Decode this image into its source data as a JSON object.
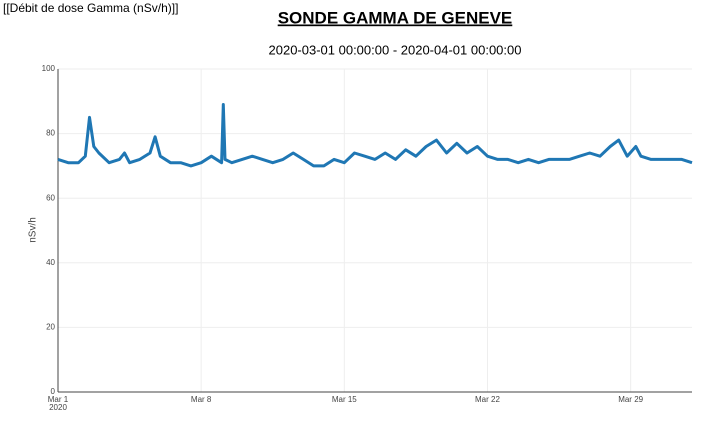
{
  "header": {
    "label": "[[Débit de dose Gamma (nSv/h)]]"
  },
  "chart_data": {
    "type": "line",
    "title": "SONDE GAMMA DE GENEVE",
    "subtitle": "2020-03-01 00:00:00 - 2020-04-01 00:00:00",
    "ylabel": "nSv/h",
    "x_year_label": "2020",
    "xlim": [
      "2020-03-01 00:00",
      "2020-04-01 00:00"
    ],
    "xticks": [
      {
        "value": "2020-03-01 00:00",
        "label": "Mar 1"
      },
      {
        "value": "2020-03-08 00:00",
        "label": "Mar 8"
      },
      {
        "value": "2020-03-15 00:00",
        "label": "Mar 15"
      },
      {
        "value": "2020-03-22 00:00",
        "label": "Mar 22"
      },
      {
        "value": "2020-03-29 00:00",
        "label": "Mar 29"
      }
    ],
    "ylim": [
      0,
      100
    ],
    "yticks": [
      0,
      20,
      40,
      60,
      80,
      100
    ],
    "grid": true,
    "series": [
      {
        "name": "nSv/h",
        "color": "#1f77b4",
        "x": [
          "2020-03-01 00:00",
          "2020-03-01 12:00",
          "2020-03-02 00:00",
          "2020-03-02 08:00",
          "2020-03-02 13:00",
          "2020-03-02 18:00",
          "2020-03-03 00:00",
          "2020-03-03 12:00",
          "2020-03-04 00:00",
          "2020-03-04 06:00",
          "2020-03-04 12:00",
          "2020-03-05 00:00",
          "2020-03-05 12:00",
          "2020-03-05 18:00",
          "2020-03-06 00:00",
          "2020-03-06 12:00",
          "2020-03-07 00:00",
          "2020-03-07 12:00",
          "2020-03-08 00:00",
          "2020-03-08 12:00",
          "2020-03-09 00:00",
          "2020-03-09 02:00",
          "2020-03-09 04:00",
          "2020-03-09 12:00",
          "2020-03-10 00:00",
          "2020-03-10 12:00",
          "2020-03-11 00:00",
          "2020-03-11 12:00",
          "2020-03-12 00:00",
          "2020-03-12 12:00",
          "2020-03-13 00:00",
          "2020-03-13 12:00",
          "2020-03-14 00:00",
          "2020-03-14 12:00",
          "2020-03-15 00:00",
          "2020-03-15 12:00",
          "2020-03-16 00:00",
          "2020-03-16 12:00",
          "2020-03-17 00:00",
          "2020-03-17 12:00",
          "2020-03-18 00:00",
          "2020-03-18 12:00",
          "2020-03-19 00:00",
          "2020-03-19 12:00",
          "2020-03-20 00:00",
          "2020-03-20 12:00",
          "2020-03-21 00:00",
          "2020-03-21 12:00",
          "2020-03-22 00:00",
          "2020-03-22 12:00",
          "2020-03-23 00:00",
          "2020-03-23 12:00",
          "2020-03-24 00:00",
          "2020-03-24 12:00",
          "2020-03-25 00:00",
          "2020-03-25 12:00",
          "2020-03-26 00:00",
          "2020-03-26 12:00",
          "2020-03-27 00:00",
          "2020-03-27 12:00",
          "2020-03-28 00:00",
          "2020-03-28 10:00",
          "2020-03-28 20:00",
          "2020-03-29 06:00",
          "2020-03-29 12:00",
          "2020-03-30 00:00",
          "2020-03-30 12:00",
          "2020-03-31 00:00",
          "2020-03-31 12:00",
          "2020-04-01 00:00"
        ],
        "values": [
          72,
          71,
          71,
          73,
          85,
          76,
          74,
          71,
          72,
          74,
          71,
          72,
          74,
          79,
          73,
          71,
          71,
          70,
          71,
          73,
          71,
          89,
          72,
          71,
          72,
          73,
          72,
          71,
          72,
          74,
          72,
          70,
          70,
          72,
          71,
          74,
          73,
          72,
          74,
          72,
          75,
          73,
          76,
          78,
          74,
          77,
          74,
          76,
          73,
          72,
          72,
          71,
          72,
          71,
          72,
          72,
          72,
          73,
          74,
          73,
          76,
          78,
          73,
          76,
          73,
          72,
          72,
          72,
          72,
          71
        ]
      }
    ]
  }
}
